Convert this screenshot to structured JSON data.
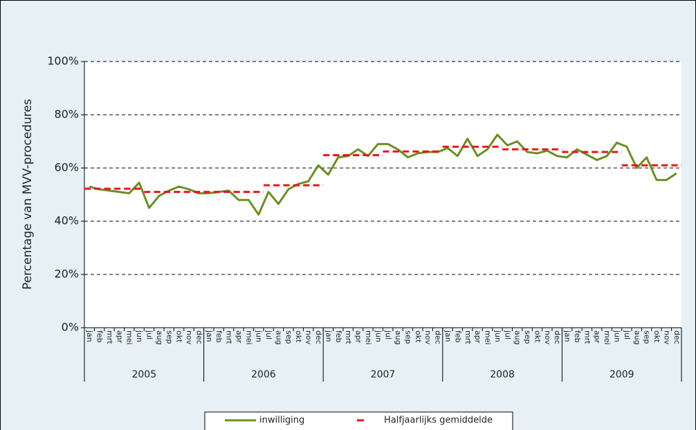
{
  "chart_data": {
    "type": "line",
    "ylabel": "Percentage van MVV-procedures",
    "categories": [
      "jan",
      "feb",
      "mrt",
      "apr",
      "mei",
      "jun",
      "jul",
      "aug",
      "sep",
      "okt",
      "nov",
      "dec",
      "jan",
      "feb",
      "mrt",
      "apr",
      "mei",
      "jun",
      "jul",
      "aug",
      "sep",
      "okt",
      "nov",
      "dec",
      "jan",
      "feb",
      "mrt",
      "apr",
      "mei",
      "jun",
      "jul",
      "aug",
      "sep",
      "okt",
      "nov",
      "dec",
      "jan",
      "feb",
      "mrt",
      "apr",
      "mei",
      "jun",
      "jul",
      "aug",
      "sep",
      "okt",
      "nov",
      "dec",
      "jan",
      "feb",
      "mrt",
      "apr",
      "mei",
      "jun",
      "jul",
      "aug",
      "sep",
      "okt",
      "nov",
      "dec"
    ],
    "groups": [
      "2005",
      "2006",
      "2007",
      "2008",
      "2009"
    ],
    "series": [
      {
        "name": "inwilliging",
        "color": "#6b8e23",
        "style": "solid",
        "values": [
          53,
          52,
          51.5,
          51,
          50.5,
          54.5,
          45,
          49.5,
          51.5,
          53,
          52,
          50.5,
          50.5,
          51,
          51.5,
          48,
          48,
          42.5,
          51,
          46.5,
          52,
          54,
          55,
          61,
          57.5,
          64,
          64.5,
          67,
          64.5,
          69,
          69,
          67,
          64,
          65.5,
          66,
          66,
          67.5,
          64.5,
          71,
          64.5,
          67,
          72.5,
          68.5,
          70,
          66,
          65.5,
          66.5,
          64.5,
          64,
          67,
          65,
          63,
          64.5,
          69.5,
          68,
          60,
          64,
          55.5,
          55.5,
          58
        ]
      },
      {
        "name": "Halfjaarlijks gemiddelde",
        "color": "#e8141b",
        "style": "dashed",
        "values": [
          52.2,
          52.2,
          52.2,
          52.2,
          52.2,
          52.2,
          51,
          51,
          51,
          51,
          51,
          51,
          51,
          51,
          51,
          51,
          51,
          51,
          53.5,
          53.5,
          53.5,
          53.5,
          53.5,
          53.5,
          64.8,
          64.8,
          64.8,
          64.8,
          64.8,
          64.8,
          66.2,
          66.2,
          66.2,
          66.2,
          66.2,
          66.2,
          68,
          68,
          68,
          68,
          68,
          68,
          67,
          67,
          67,
          67,
          67,
          67,
          66,
          66,
          66,
          66,
          66,
          66,
          61,
          61,
          61,
          61,
          61,
          61
        ]
      }
    ],
    "ylim": [
      0,
      100
    ],
    "yticks": [
      {
        "value": 0,
        "label": "0%"
      },
      {
        "value": 20,
        "label": "20%"
      },
      {
        "value": 40,
        "label": "40%"
      },
      {
        "value": 60,
        "label": "60%"
      },
      {
        "value": 80,
        "label": "80%"
      },
      {
        "value": 100,
        "label": "100%"
      }
    ],
    "grid": true,
    "legend": "bottom"
  }
}
